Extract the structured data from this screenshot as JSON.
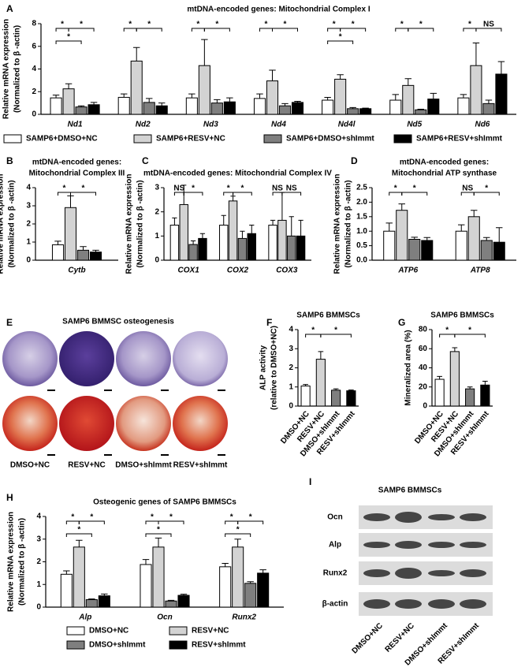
{
  "chart_data": [
    {
      "type": "grouped_bar",
      "panel": "A",
      "title": [
        "mtDNA-encoded genes: Mitochondrial Complex I"
      ],
      "ylabel": [
        "Relative mRNA expression",
        "(Normalized to β -actin)"
      ],
      "categories": [
        "Nd1",
        "Nd2",
        "Nd3",
        "Nd4",
        "Nd4l",
        "Nd5",
        "Nd6"
      ],
      "ylim": [
        0,
        8
      ],
      "yticks": [
        0,
        2,
        4,
        6,
        8
      ],
      "legend": "bottom",
      "series": [
        {
          "name": "SAMP6+DMSO+NC",
          "color": "#ffffff",
          "values": [
            1.45,
            1.5,
            1.45,
            1.4,
            1.25,
            1.25,
            1.45
          ],
          "errors": [
            0.25,
            0.3,
            0.35,
            0.4,
            0.25,
            0.5,
            0.3
          ]
        },
        {
          "name": "SAMP6+RESV+NC",
          "color": "#d3d3d3",
          "values": [
            2.25,
            4.7,
            4.3,
            2.95,
            3.1,
            2.55,
            4.3
          ],
          "errors": [
            0.45,
            1.2,
            2.3,
            0.95,
            0.4,
            0.6,
            2.0
          ]
        },
        {
          "name": "SAMP6+DMSO+shImmt",
          "color": "#7f7f7f",
          "values": [
            0.65,
            1.05,
            1.0,
            0.75,
            0.5,
            0.4,
            0.95
          ],
          "errors": [
            0.1,
            0.35,
            0.3,
            0.2,
            0.1,
            0.05,
            0.3
          ]
        },
        {
          "name": "SAMP6+RESV+shImmt",
          "color": "#000000",
          "values": [
            0.85,
            0.75,
            1.1,
            1.05,
            0.5,
            1.35,
            3.55
          ],
          "errors": [
            0.2,
            0.25,
            0.35,
            0.1,
            0.05,
            0.5,
            1.1
          ]
        }
      ],
      "significance": [
        [
          "*",
          "*",
          "*"
        ],
        [
          "*",
          "*"
        ],
        [
          "*",
          "*"
        ],
        [
          "*",
          "*"
        ],
        [
          "*",
          "*",
          "*"
        ],
        [
          "*",
          "*"
        ],
        [
          "*",
          "NS"
        ]
      ]
    },
    {
      "type": "grouped_bar",
      "panel": "B",
      "title": [
        "mtDNA-encoded genes:",
        "Mitochondrial Complex III"
      ],
      "ylabel": [
        "Relative mRNA expression",
        "(Normalized to β -actin)"
      ],
      "categories": [
        "Cytb"
      ],
      "ylim": [
        0,
        4
      ],
      "yticks": [
        0,
        1,
        2,
        3,
        4
      ],
      "series": [
        {
          "color": "#ffffff",
          "values": [
            0.85
          ],
          "errors": [
            0.2
          ]
        },
        {
          "color": "#d3d3d3",
          "values": [
            2.9
          ],
          "errors": [
            0.65
          ]
        },
        {
          "color": "#7f7f7f",
          "values": [
            0.55
          ],
          "errors": [
            0.2
          ]
        },
        {
          "color": "#000000",
          "values": [
            0.45
          ],
          "errors": [
            0.1
          ]
        }
      ],
      "significance": [
        [
          "*",
          "*"
        ]
      ]
    },
    {
      "type": "grouped_bar",
      "panel": "C",
      "title": [
        "mtDNA-encoded genes: Mitochondrial Complex IV"
      ],
      "ylabel": [
        "Relative mRNA expression",
        "(Normalized to β -actin)"
      ],
      "categories": [
        "COX1",
        "COX2",
        "COX3"
      ],
      "ylim": [
        0,
        3
      ],
      "yticks": [
        0,
        1,
        2,
        3
      ],
      "series": [
        {
          "color": "#ffffff",
          "values": [
            1.45,
            1.45,
            1.45
          ],
          "errors": [
            0.3,
            0.4,
            0.2
          ]
        },
        {
          "color": "#d3d3d3",
          "values": [
            2.3,
            2.45,
            1.65
          ],
          "errors": [
            0.8,
            0.2,
            1.15
          ]
        },
        {
          "color": "#7f7f7f",
          "values": [
            0.65,
            0.9,
            1.0
          ],
          "errors": [
            0.15,
            0.3,
            0.8
          ]
        },
        {
          "color": "#000000",
          "values": [
            0.9,
            1.1,
            1.0
          ],
          "errors": [
            0.2,
            0.35,
            0.65
          ]
        }
      ],
      "significance": [
        [
          "NS",
          "*"
        ],
        [
          "*",
          "*"
        ],
        [
          "NS",
          "NS"
        ]
      ]
    },
    {
      "type": "grouped_bar",
      "panel": "D",
      "title": [
        "mtDNA-encoded genes:",
        "Mitochondrial ATP synthase"
      ],
      "ylabel": [
        "Relative mRNA expression",
        "(Normalized to β -actin)"
      ],
      "categories": [
        "ATP6",
        "ATP8"
      ],
      "ylim": [
        0,
        2.5
      ],
      "yticks": [
        {
          "value": 0,
          "label": "0.0"
        },
        0.5,
        {
          "value": 1,
          "label": "1.0"
        },
        1.5,
        {
          "value": 2,
          "label": "2.0"
        },
        2.5
      ],
      "series": [
        {
          "color": "#ffffff",
          "values": [
            1.0,
            1.0
          ],
          "errors": [
            0.28,
            0.22
          ]
        },
        {
          "color": "#d3d3d3",
          "values": [
            1.72,
            1.5
          ],
          "errors": [
            0.22,
            0.22
          ]
        },
        {
          "color": "#7f7f7f",
          "values": [
            0.72,
            0.68
          ],
          "errors": [
            0.07,
            0.1
          ]
        },
        {
          "color": "#000000",
          "values": [
            0.68,
            0.62
          ],
          "errors": [
            0.1,
            0.5
          ]
        }
      ],
      "significance": [
        [
          "*",
          "*"
        ],
        [
          "NS",
          "*"
        ]
      ]
    },
    {
      "type": "bar",
      "panel": "F",
      "title": [
        "SAMP6 BMMSCs"
      ],
      "ylabel": [
        "ALP activity",
        "(relative to DMSO+NC)"
      ],
      "categories": [
        "DMSO+NC",
        "RESV+NC",
        "DMSO+shImmt",
        "RESV+shImmt"
      ],
      "values": [
        1.05,
        2.45,
        0.83,
        0.8
      ],
      "errors": [
        0.08,
        0.4,
        0.07,
        0.04
      ],
      "colors": [
        "#ffffff",
        "#d3d3d3",
        "#7f7f7f",
        "#000000"
      ],
      "ylim": [
        0,
        4
      ],
      "yticks": [
        0,
        1,
        2,
        3,
        4
      ],
      "significance": [
        "*",
        "*"
      ]
    },
    {
      "type": "bar",
      "panel": "G",
      "title": [
        "SAMP6 BMMSCs"
      ],
      "ylabel": [
        "Mineralized area (%)"
      ],
      "categories": [
        "DMSO+NC",
        "RESV+NC",
        "DMSO+shImmt",
        "RESV+shImmt"
      ],
      "values": [
        28,
        57,
        18,
        22
      ],
      "errors": [
        3,
        4,
        2,
        4
      ],
      "colors": [
        "#ffffff",
        "#d3d3d3",
        "#7f7f7f",
        "#000000"
      ],
      "ylim": [
        0,
        80
      ],
      "yticks": [
        0,
        20,
        40,
        60,
        80
      ],
      "significance": [
        "*",
        "*"
      ]
    },
    {
      "type": "grouped_bar",
      "panel": "H",
      "title": [
        "Osteogenic genes of SAMP6 BMMSCs"
      ],
      "ylabel": [
        "Relative mRNA expression",
        "(Normalized to β -actin)"
      ],
      "categories": [
        "Alp",
        "Ocn",
        "Runx2"
      ],
      "ylim": [
        0,
        4
      ],
      "yticks": [
        0,
        1,
        2,
        3,
        4
      ],
      "legend": "bottom",
      "series": [
        {
          "name": "DMSO+NC",
          "color": "#ffffff",
          "values": [
            1.45,
            1.88,
            1.78
          ],
          "errors": [
            0.15,
            0.22,
            0.15
          ]
        },
        {
          "name": "RESV+NC",
          "color": "#d3d3d3",
          "values": [
            2.65,
            2.65,
            2.65
          ],
          "errors": [
            0.3,
            0.4,
            0.35
          ]
        },
        {
          "name": "DMSO+shImmt",
          "color": "#7f7f7f",
          "values": [
            0.33,
            0.27,
            1.05
          ],
          "errors": [
            0.03,
            0.03,
            0.07
          ]
        },
        {
          "name": "RESV+shImmt",
          "color": "#000000",
          "values": [
            0.5,
            0.52,
            1.5
          ],
          "errors": [
            0.08,
            0.05,
            0.15
          ]
        }
      ],
      "significance": [
        [
          "*",
          "*",
          "*"
        ],
        [
          "*",
          "*",
          "*"
        ],
        [
          "*",
          "*",
          "*"
        ]
      ]
    }
  ],
  "osteogenesis": {
    "panel": "E",
    "title": "SAMP6 BMMSC osteogenesis",
    "labels": [
      "DMSO+NC",
      "RESV+NC",
      "DMSO+shImmt",
      "RESV+shImmt"
    ]
  },
  "western_blot": {
    "panel": "I",
    "title": "SAMP6 BMMSCs",
    "rows": [
      "Ocn",
      "Alp",
      "Runx2",
      "β-actin"
    ],
    "lanes": [
      "DMSO+NC",
      "RESV+NC",
      "DMSO+shImmt",
      "RESV+shImmt"
    ]
  }
}
